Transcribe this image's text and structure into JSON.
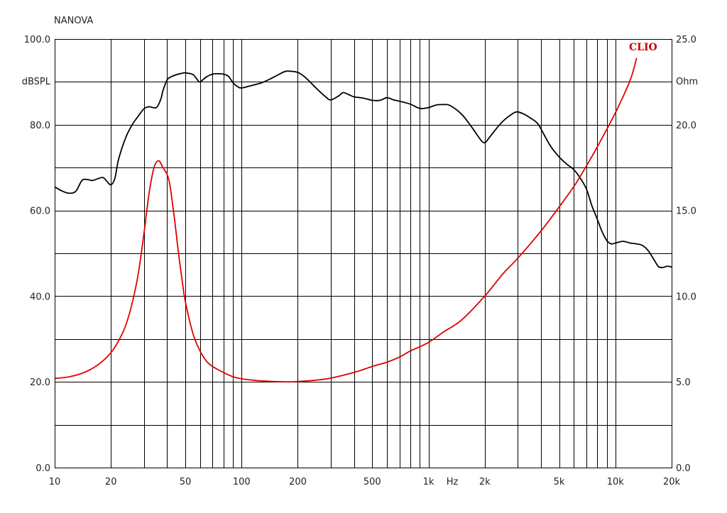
{
  "chart_data": {
    "type": "line",
    "title": "NANOVA",
    "brand": "CLIO",
    "xlabel": "Hz",
    "x_scale": "log",
    "xlim": [
      10,
      20000
    ],
    "x_ticks": [
      10,
      20,
      50,
      100,
      200,
      500,
      1000,
      2000,
      5000,
      10000,
      20000
    ],
    "x_tick_labels": [
      "10",
      "20",
      "50",
      "100",
      "200",
      "500",
      "1k",
      "2k",
      "5k",
      "10k",
      "20k"
    ],
    "y_left": {
      "label": "dBSPL",
      "lim": [
        0,
        100
      ],
      "ticks": [
        0,
        20,
        40,
        60,
        80,
        100
      ],
      "tick_labels": [
        "0.0",
        "20.0",
        "40.0",
        "60.0",
        "80.0",
        "100.0"
      ]
    },
    "y_right": {
      "label": "Ohm",
      "lim": [
        0,
        25
      ],
      "ticks": [
        0,
        5,
        10,
        15,
        20,
        25
      ],
      "tick_labels": [
        "0.0",
        "5.0",
        "10.0",
        "15.0",
        "20.0",
        "25.0"
      ]
    },
    "grid": true,
    "series": [
      {
        "axis": "left",
        "color": "#000000",
        "x": [
          10,
          11,
          12,
          13,
          14,
          15,
          16,
          18,
          19,
          20,
          21,
          22,
          24,
          26,
          28,
          30,
          32,
          35,
          37,
          38,
          40,
          42,
          45,
          48,
          50,
          55,
          58,
          60,
          65,
          70,
          75,
          80,
          85,
          90,
          95,
          100,
          110,
          130,
          150,
          170,
          180,
          200,
          220,
          250,
          280,
          300,
          330,
          350,
          380,
          400,
          450,
          500,
          550,
          600,
          650,
          700,
          800,
          900,
          1000,
          1100,
          1200,
          1300,
          1500,
          1700,
          1900,
          2000,
          2100,
          2300,
          2500,
          2800,
          3000,
          3300,
          3500,
          3800,
          4000,
          4500,
          5000,
          5500,
          6000,
          6500,
          7000,
          7500,
          8000,
          8500,
          9000,
          9500,
          10000,
          11000,
          12000,
          13000,
          14000,
          15000,
          16000,
          17000,
          18000,
          19000,
          20000
        ],
        "y": [
          65.5,
          64.5,
          64.0,
          64.5,
          67.0,
          67.2,
          67.0,
          67.7,
          66.8,
          66.0,
          67.5,
          72.0,
          77.0,
          80.0,
          82.0,
          83.7,
          84.2,
          84.0,
          86.0,
          88.0,
          90.5,
          91.2,
          91.7,
          92.0,
          92.1,
          91.7,
          90.5,
          90.0,
          91.2,
          91.8,
          91.9,
          91.8,
          91.3,
          89.8,
          88.9,
          88.6,
          89.0,
          89.9,
          91.2,
          92.4,
          92.5,
          92.2,
          91.0,
          88.6,
          86.6,
          85.8,
          86.7,
          87.5,
          86.9,
          86.5,
          86.2,
          85.7,
          85.7,
          86.3,
          85.8,
          85.5,
          84.8,
          83.8,
          84.0,
          84.6,
          84.7,
          84.5,
          82.5,
          79.5,
          76.5,
          75.8,
          76.8,
          79.0,
          80.8,
          82.5,
          83.0,
          82.3,
          81.6,
          80.5,
          79.0,
          75.0,
          72.5,
          70.8,
          69.5,
          67.5,
          65.0,
          61.0,
          58.0,
          55.0,
          53.0,
          52.2,
          52.4,
          52.8,
          52.4,
          52.2,
          51.8,
          50.6,
          48.7,
          46.9,
          46.7,
          47.0,
          46.8
        ]
      },
      {
        "axis": "right",
        "color": "#e00000",
        "x": [
          10,
          12,
          14,
          16,
          18,
          20,
          22,
          24,
          26,
          28,
          30,
          32,
          34,
          36,
          38,
          39,
          40,
          41,
          42,
          44,
          46,
          48,
          50,
          55,
          60,
          65,
          70,
          80,
          90,
          100,
          120,
          150,
          180,
          200,
          250,
          300,
          400,
          500,
          600,
          700,
          800,
          1000,
          1200,
          1500,
          2000,
          2500,
          3000,
          4000,
          5000,
          6000,
          7000,
          8000,
          10000,
          12000,
          13000
        ],
        "y": [
          5.2,
          5.3,
          5.5,
          5.8,
          6.2,
          6.7,
          7.4,
          8.3,
          9.6,
          11.3,
          13.6,
          16.0,
          17.5,
          17.9,
          17.5,
          17.3,
          17.1,
          16.7,
          16.0,
          14.3,
          12.5,
          11.0,
          9.7,
          7.8,
          6.8,
          6.2,
          5.9,
          5.55,
          5.3,
          5.18,
          5.08,
          5.02,
          5.0,
          5.02,
          5.1,
          5.22,
          5.55,
          5.9,
          6.15,
          6.45,
          6.8,
          7.3,
          7.9,
          8.6,
          10.0,
          11.3,
          12.2,
          13.8,
          15.2,
          16.4,
          17.6,
          18.7,
          20.7,
          22.6,
          23.9
        ]
      }
    ]
  }
}
